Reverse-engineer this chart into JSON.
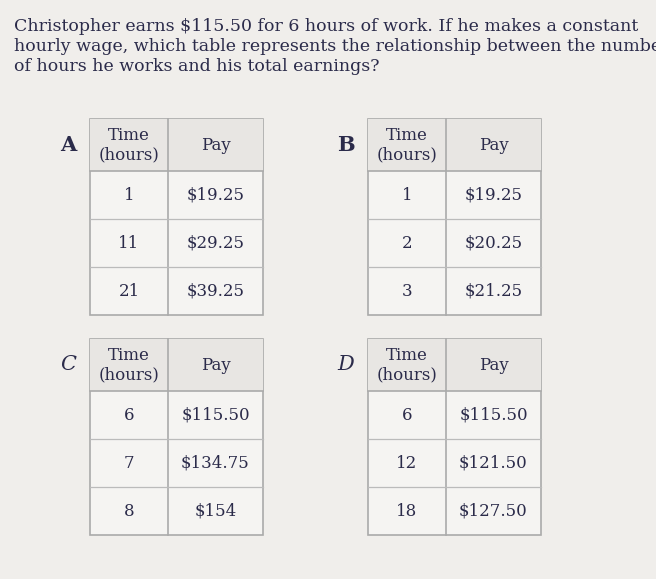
{
  "question_line1": "Christopher earns $115.50 for 6 hours of work. If he makes a constant",
  "question_line2": "hourly wage, which table represents the relationship between the numbe",
  "question_line3": "of hours he works and his total earnings?",
  "bg_color": "#f0eeeb",
  "table_bg": "#f5f4f2",
  "table_border": "#aaaaaa",
  "row_line": "#bbbbbb",
  "text_color": "#2b2b4a",
  "label_color": "#2b2b4a",
  "tables": {
    "A": {
      "label": "A",
      "headers": [
        "Time\n(hours)",
        "Pay"
      ],
      "rows": [
        [
          "1",
          "$19.25"
        ],
        [
          "11",
          "$29.25"
        ],
        [
          "21",
          "$39.25"
        ]
      ]
    },
    "B": {
      "label": "B",
      "headers": [
        "Time\n(hours)",
        "Pay"
      ],
      "rows": [
        [
          "1",
          "$19.25"
        ],
        [
          "2",
          "$20.25"
        ],
        [
          "3",
          "$21.25"
        ]
      ]
    },
    "C": {
      "label": "C",
      "headers": [
        "Time\n(hours)",
        "Pay"
      ],
      "rows": [
        [
          "6",
          "$115.50"
        ],
        [
          "7",
          "$134.75"
        ],
        [
          "8",
          "$154"
        ]
      ]
    },
    "D": {
      "label": "D",
      "headers": [
        "Time\n(hours)",
        "Pay"
      ],
      "rows": [
        [
          "6",
          "$115.50"
        ],
        [
          "12",
          "$121.50"
        ],
        [
          "18",
          "$127.50"
        ]
      ]
    }
  },
  "question_fontsize": 12.5,
  "label_fontsize": 15,
  "header_fontsize": 12,
  "cell_fontsize": 12,
  "label_bold_A": true,
  "label_bold_B": true,
  "label_bold_C": false,
  "label_bold_D": false
}
